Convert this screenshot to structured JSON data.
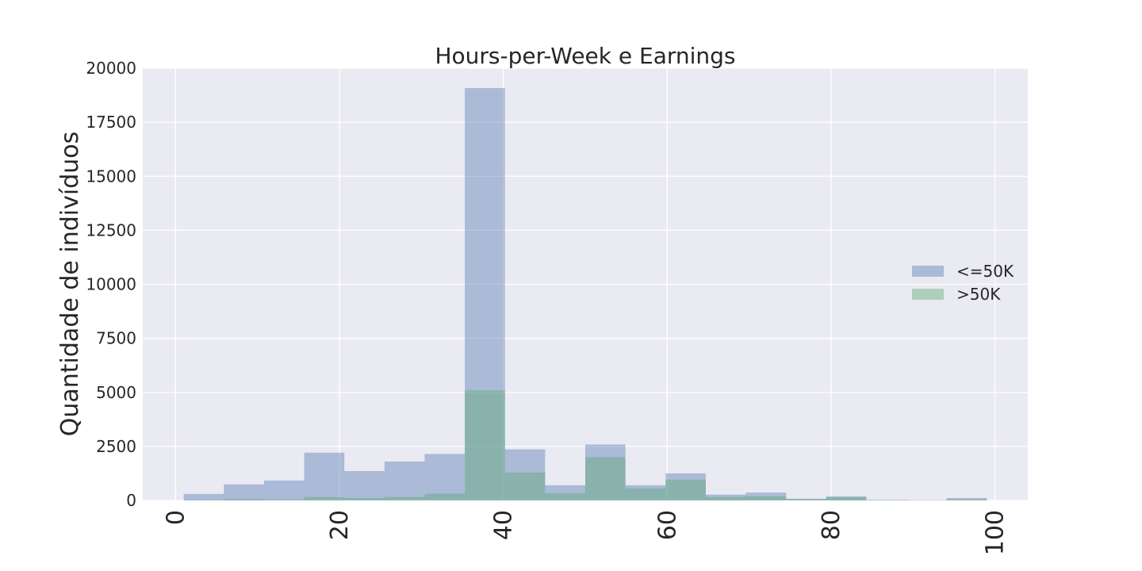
{
  "chart_data": {
    "type": "bar",
    "title": "Hours-per-Week e Earnings",
    "xlabel": "",
    "ylabel": "Quantidade de indivíduos",
    "xlim": [
      -4,
      104
    ],
    "ylim": [
      0,
      20000
    ],
    "xticks": [
      0,
      20,
      40,
      60,
      80,
      100
    ],
    "yticks": [
      0,
      2500,
      5000,
      7500,
      10000,
      12500,
      15000,
      17500,
      20000
    ],
    "grid": true,
    "legend_position": "center-right",
    "bin_edges": [
      1,
      5.9,
      10.8,
      15.7,
      20.6,
      25.5,
      30.4,
      35.3,
      40.2,
      45.1,
      50,
      54.9,
      59.8,
      64.7,
      69.6,
      74.5,
      79.4,
      84.3,
      89.2,
      94.1,
      99
    ],
    "series": [
      {
        "name": "<=50K",
        "color": "#4c72b0",
        "values": [
          300,
          740,
          920,
          2210,
          1360,
          1800,
          2150,
          19080,
          2360,
          700,
          2590,
          700,
          1250,
          270,
          360,
          80,
          190,
          30,
          20,
          110
        ]
      },
      {
        "name": ">50K",
        "color": "#55a868",
        "values": [
          20,
          60,
          40,
          150,
          110,
          150,
          310,
          5090,
          1290,
          330,
          2000,
          560,
          960,
          160,
          190,
          50,
          140,
          15,
          10,
          40
        ]
      }
    ]
  }
}
